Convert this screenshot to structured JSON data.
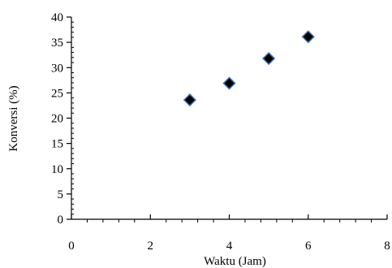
{
  "chart_data": {
    "type": "scatter",
    "title": "",
    "xlabel": "Waktu (Jam)",
    "ylabel": "Konversi (%)",
    "xlim": [
      0,
      8
    ],
    "ylim": [
      0,
      40
    ],
    "x_ticks": [
      "0",
      "2",
      "4",
      "6",
      "8"
    ],
    "y_ticks": [
      "0",
      "5",
      "10",
      "15",
      "20",
      "25",
      "30",
      "35",
      "40"
    ],
    "grid": false,
    "legend": "none",
    "marker": "diamond",
    "marker_fill": "#000000",
    "marker_edge": "#3f6fb0",
    "series": [
      {
        "points": [
          {
            "x": 3,
            "y": 23.6
          },
          {
            "x": 4,
            "y": 26.9
          },
          {
            "x": 5,
            "y": 31.8
          },
          {
            "x": 6,
            "y": 36.1
          }
        ]
      }
    ]
  }
}
